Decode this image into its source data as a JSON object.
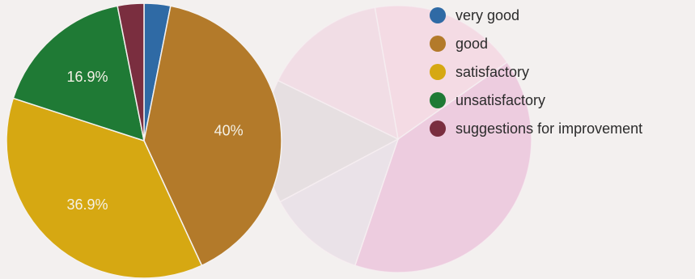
{
  "chart_data": {
    "type": "pie",
    "title": "",
    "legend_position": "top-right",
    "start_angle_deg": 90,
    "direction": "clockwise",
    "slices": [
      {
        "name": "very good",
        "value": 3.1,
        "color": "#2f6aa5",
        "label": ""
      },
      {
        "name": "good",
        "value": 40,
        "color": "#b37a2a",
        "label": "40%"
      },
      {
        "name": "satisfactory",
        "value": 36.9,
        "color": "#d6a812",
        "label": "36.9%"
      },
      {
        "name": "unsatisfactory",
        "value": 16.9,
        "color": "#1f7a35",
        "label": "16.9%"
      },
      {
        "name": "suggestions for improvement",
        "value": 3.1,
        "color": "#7a2e3f",
        "label": ""
      }
    ]
  },
  "background_chart": {
    "type": "pie",
    "color": "#efc9dd",
    "slices": [
      {
        "value": 18,
        "color": "#f6dde4"
      },
      {
        "value": 40,
        "color": "#ecc3dc"
      },
      {
        "value": 12,
        "color": "#e6e8ea"
      },
      {
        "value": 15,
        "color": "#dfe3df"
      },
      {
        "value": 15,
        "color": "#f2dfe5"
      }
    ]
  }
}
